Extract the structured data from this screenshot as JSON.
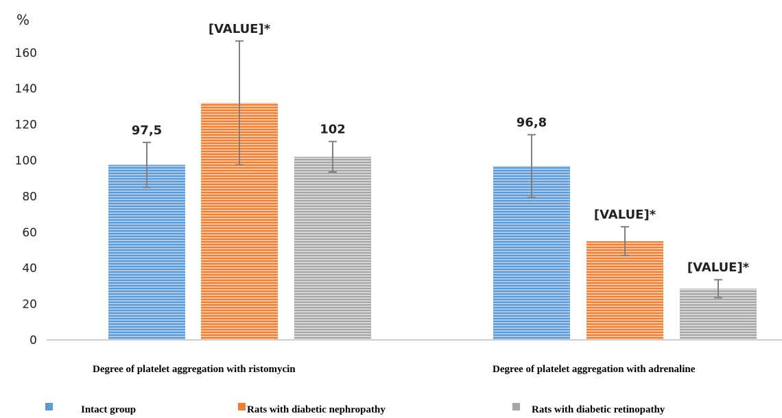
{
  "chart_data": {
    "type": "bar",
    "ylabel": "%",
    "ylim": [
      0,
      170
    ],
    "yticks": [
      0,
      20,
      40,
      60,
      80,
      100,
      120,
      140,
      160
    ],
    "grid": false,
    "legend_position": "bottom",
    "categories": [
      "Degree of platelet aggregation with ristomycin",
      "Degree of platelet aggregation with adrenaline"
    ],
    "series": [
      {
        "name": "Intact group",
        "color": "#5b9bd5",
        "values": [
          97.5,
          96.8
        ],
        "errors": [
          12.5,
          17.5
        ],
        "labels": [
          "97,5",
          "96,8"
        ]
      },
      {
        "name": "Rats with diabetic nephropathy",
        "color": "#ed7d31",
        "values": [
          132,
          55
        ],
        "errors": [
          34.5,
          8
        ],
        "labels": [
          "[VALUE]*",
          "[VALUE]*"
        ]
      },
      {
        "name": "Rats with diabetic retinopathy",
        "color": "#a5a5a5",
        "values": [
          102,
          28.5
        ],
        "errors": [
          8.5,
          5
        ],
        "labels": [
          "102",
          "[VALUE]*"
        ]
      }
    ]
  }
}
